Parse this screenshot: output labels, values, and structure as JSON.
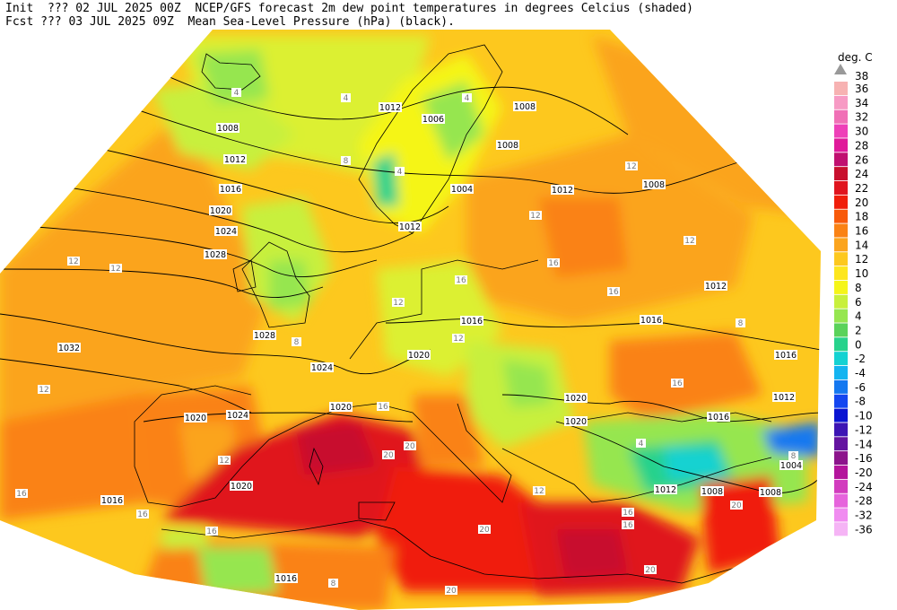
{
  "header": {
    "line1": "Init  ??? 02 JUL 2025 00Z  NCEP/GFS forecast 2m dew point temperatures in degrees Celcius (shaded)",
    "line2": "Fcst ??? 03 JUL 2025 09Z  Mean Sea-Level Pressure (hPa) (black)."
  },
  "legend": {
    "unit": "deg. C",
    "top_value": "38",
    "bins": [
      {
        "label": "36",
        "color": "#f7b2b2"
      },
      {
        "label": "34",
        "color": "#f79ac4"
      },
      {
        "label": "32",
        "color": "#f070b6"
      },
      {
        "label": "30",
        "color": "#ee40b8"
      },
      {
        "label": "28",
        "color": "#e01a9a"
      },
      {
        "label": "26",
        "color": "#c01070"
      },
      {
        "label": "24",
        "color": "#c8102e"
      },
      {
        "label": "22",
        "color": "#e0141e"
      },
      {
        "label": "20",
        "color": "#f01e0a"
      },
      {
        "label": "18",
        "color": "#f85a0a"
      },
      {
        "label": "16",
        "color": "#fa8214"
      },
      {
        "label": "14",
        "color": "#fba41e"
      },
      {
        "label": "12",
        "color": "#fdc81e"
      },
      {
        "label": "10",
        "color": "#fde61e"
      },
      {
        "label": "8",
        "color": "#f5f519"
      },
      {
        "label": "6",
        "color": "#c8f03c"
      },
      {
        "label": "4",
        "color": "#96e650"
      },
      {
        "label": "2",
        "color": "#5ad25a"
      },
      {
        "label": "0",
        "color": "#28d28c"
      },
      {
        "label": "-2",
        "color": "#14d2d2"
      },
      {
        "label": "-4",
        "color": "#14b4f0"
      },
      {
        "label": "-6",
        "color": "#1478f0"
      },
      {
        "label": "-8",
        "color": "#1446f0"
      },
      {
        "label": "-10",
        "color": "#0a14d2"
      },
      {
        "label": "-12",
        "color": "#3c14b4"
      },
      {
        "label": "-14",
        "color": "#6414a0"
      },
      {
        "label": "-16",
        "color": "#8c148c"
      },
      {
        "label": "-20",
        "color": "#b4149c"
      },
      {
        "label": "-24",
        "color": "#d23cbe"
      },
      {
        "label": "-28",
        "color": "#e664dc"
      },
      {
        "label": "-32",
        "color": "#f08cf0"
      },
      {
        "label": "-36",
        "color": "#f5b4f5"
      }
    ]
  },
  "isobar_labels": [
    "1012",
    "1006",
    "1008",
    "1008",
    "1008",
    "1012",
    "1016",
    "1008",
    "1020",
    "1004",
    "1024",
    "1028",
    "1012",
    "1012",
    "1016",
    "1012",
    "1016",
    "1032",
    "1028",
    "1024",
    "1020",
    "1016",
    "1020",
    "1020",
    "1024",
    "1020",
    "1020",
    "1012",
    "1016",
    "1016",
    "1004",
    "1012",
    "1008",
    "1008",
    "1016",
    "1020"
  ],
  "dewpoint_labels": [
    "4",
    "4",
    "4",
    "4",
    "8",
    "8",
    "12",
    "12",
    "12",
    "12",
    "12",
    "16",
    "16",
    "16",
    "16",
    "12",
    "12",
    "16",
    "16",
    "12",
    "12",
    "16",
    "20",
    "20",
    "20",
    "20",
    "16",
    "12",
    "16",
    "16",
    "20",
    "20",
    "4",
    "8",
    "8",
    "8"
  ]
}
